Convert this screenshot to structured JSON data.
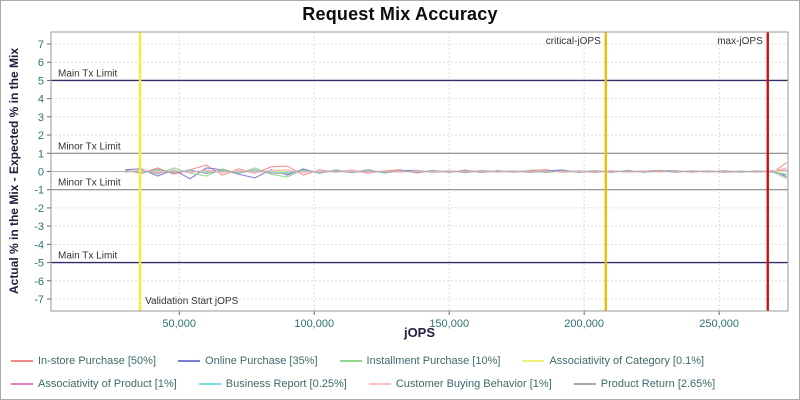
{
  "chart_data": {
    "type": "line",
    "title": "Request Mix Accuracy",
    "xlabel": "jOPS",
    "ylabel": "Actual % in the Mix - Expected % in the Mix",
    "xlim": [
      2500,
      275500
    ],
    "ylim": [
      -7.66,
      7.66
    ],
    "x_ticks": [
      50000,
      100000,
      150000,
      200000,
      250000
    ],
    "y_ticks": [
      7,
      6,
      5,
      4,
      3,
      2,
      1,
      0,
      -1,
      -2,
      -3,
      -4,
      -5,
      -6,
      -7
    ],
    "grid": true,
    "legend_position": "bottom",
    "reference_lines": {
      "horizontal": [
        {
          "label": "Main Tx Limit",
          "y": 5,
          "color": "#2d2d66",
          "width": 1.4
        },
        {
          "label": "Minor Tx Limit",
          "y": 1,
          "color": "#8a8a8a",
          "width": 1.2
        },
        {
          "label": "",
          "y": 0,
          "color": "#b4b4b4",
          "width": 1.0
        },
        {
          "label": "Minor Tx Limit",
          "y": -1,
          "color": "#8a8a8a",
          "width": 1.2
        },
        {
          "label": "Main Tx Limit",
          "y": -5,
          "color": "#2d2d66",
          "width": 1.4
        }
      ],
      "vertical": [
        {
          "label": "Validation Start jOPS",
          "x": 35500,
          "color": "#f5ee31",
          "width": 2.4,
          "label_pos": "bottom-right"
        },
        {
          "label": "critical-jOPS",
          "x": 208000,
          "color": "#e8c000",
          "width": 2.4,
          "label_pos": "top-left"
        },
        {
          "label": "max-jOPS",
          "x": 268000,
          "color": "#cc1111",
          "width": 2.4,
          "label_pos": "top-left"
        }
      ]
    },
    "x": [
      30000,
      36000,
      42000,
      48000,
      54000,
      60000,
      66000,
      72000,
      78000,
      84000,
      90000,
      96000,
      102000,
      108000,
      114000,
      120000,
      126000,
      132000,
      138000,
      144000,
      150000,
      156000,
      162000,
      168000,
      174000,
      180000,
      186000,
      192000,
      198000,
      204000,
      210000,
      216000,
      222000,
      228000,
      234000,
      240000,
      246000,
      252000,
      258000,
      264000,
      270000,
      275000
    ],
    "series": [
      {
        "name": "In-store Purchase [50%]",
        "color": "#f08a8a",
        "values": [
          0.05,
          -0.1,
          0.2,
          -0.15,
          0.1,
          0.35,
          -0.2,
          0.15,
          -0.1,
          0.25,
          0.3,
          -0.2,
          0.1,
          -0.05,
          0.08,
          -0.1,
          0.05,
          0.1,
          -0.08,
          0.06,
          -0.05,
          0.08,
          -0.06,
          0.05,
          -0.04,
          0.06,
          0.1,
          -0.05,
          0.04,
          -0.06,
          0.05,
          -0.04,
          0.03,
          0.06,
          -0.05,
          0.04,
          -0.03,
          0.05,
          -0.04,
          0.03,
          -0.05,
          0.5
        ]
      },
      {
        "name": "Online Purchase [35%]",
        "color": "#7b7bd0",
        "values": [
          0.1,
          0.15,
          -0.25,
          0.1,
          -0.4,
          0.2,
          0.1,
          -0.15,
          -0.35,
          0.1,
          -0.2,
          0.15,
          -0.1,
          0.08,
          -0.06,
          0.1,
          -0.08,
          0.05,
          0.07,
          -0.06,
          0.05,
          -0.07,
          0.06,
          -0.05,
          0.04,
          -0.06,
          0.05,
          0.08,
          -0.05,
          0.04,
          -0.05,
          0.06,
          -0.04,
          0.03,
          0.05,
          -0.04,
          0.04,
          -0.05,
          0.03,
          -0.04,
          0.05,
          -0.3
        ]
      },
      {
        "name": "Installment Purchase [10%]",
        "color": "#8fd98f",
        "values": [
          -0.05,
          0.1,
          -0.15,
          0.2,
          -0.1,
          -0.25,
          0.15,
          -0.1,
          0.2,
          -0.15,
          -0.3,
          0.1,
          -0.08,
          0.06,
          -0.05,
          0.07,
          -0.06,
          0.04,
          -0.05,
          0.06,
          -0.04,
          0.05,
          -0.05,
          0.04,
          -0.03,
          0.05,
          -0.06,
          0.04,
          -0.04,
          0.05,
          -0.03,
          0.04,
          -0.04,
          0.03,
          -0.04,
          0.04,
          -0.03,
          0.03,
          -0.04,
          0.04,
          -0.03,
          -0.4
        ]
      },
      {
        "name": "Associativity of Category [0.1%]",
        "color": "#efef7f",
        "values": [
          0.02,
          -0.03,
          0.04,
          -0.02,
          0.03,
          -0.04,
          0.02,
          0.03,
          -0.02,
          0.03,
          -0.03,
          0.02,
          -0.02,
          0.03,
          -0.02,
          0.02,
          -0.02,
          0.02,
          -0.02,
          0.02,
          -0.01,
          0.02,
          -0.02,
          0.01,
          -0.02,
          0.02,
          -0.01,
          0.02,
          -0.02,
          0.01,
          -0.01,
          0.02,
          -0.01,
          0.01,
          -0.02,
          0.01,
          -0.01,
          0.01,
          -0.01,
          0.01,
          -0.01,
          0.02
        ]
      },
      {
        "name": "Associativity of Product [1%]",
        "color": "#e080c0",
        "values": [
          -0.04,
          0.06,
          -0.08,
          0.05,
          -0.06,
          0.08,
          -0.05,
          0.06,
          -0.07,
          0.05,
          0.08,
          -0.06,
          0.05,
          -0.04,
          0.05,
          -0.05,
          0.04,
          -0.04,
          0.05,
          -0.04,
          0.03,
          -0.04,
          0.04,
          -0.03,
          0.04,
          -0.04,
          0.03,
          -0.03,
          0.04,
          -0.03,
          0.03,
          -0.03,
          0.03,
          -0.03,
          0.03,
          -0.02,
          0.03,
          -0.03,
          0.02,
          -0.03,
          0.03,
          0.1
        ]
      },
      {
        "name": "Business Report [0.25%]",
        "color": "#7fdede",
        "values": [
          0.03,
          -0.05,
          0.06,
          -0.04,
          0.05,
          -0.06,
          0.04,
          -0.05,
          0.05,
          -0.04,
          -0.06,
          0.05,
          -0.04,
          0.03,
          -0.04,
          0.04,
          -0.03,
          0.03,
          -0.03,
          0.03,
          -0.03,
          0.03,
          -0.02,
          0.03,
          -0.03,
          0.02,
          -0.03,
          0.03,
          -0.02,
          0.02,
          -0.03,
          0.02,
          -0.02,
          0.02,
          -0.02,
          0.02,
          -0.02,
          0.02,
          -0.02,
          0.02,
          -0.02,
          -0.15
        ]
      },
      {
        "name": "Customer Buying Behavior [1%]",
        "color": "#f8c2c2",
        "values": [
          -0.06,
          0.08,
          -0.05,
          0.07,
          -0.08,
          0.06,
          -0.06,
          0.07,
          -0.05,
          0.06,
          0.07,
          -0.05,
          0.04,
          -0.05,
          0.04,
          -0.04,
          0.04,
          -0.03,
          0.04,
          -0.04,
          0.03,
          -0.03,
          0.03,
          -0.04,
          0.03,
          -0.03,
          0.03,
          -0.02,
          0.03,
          -0.03,
          0.02,
          -0.03,
          0.02,
          -0.02,
          0.03,
          -0.02,
          0.02,
          -0.02,
          0.02,
          -0.02,
          0.02,
          0.2
        ]
      },
      {
        "name": "Product Return [2.65%]",
        "color": "#a8a8a8",
        "values": [
          0.08,
          -0.1,
          0.12,
          -0.08,
          0.1,
          -0.12,
          0.08,
          -0.1,
          0.1,
          -0.08,
          -0.12,
          0.08,
          -0.06,
          0.05,
          -0.06,
          0.05,
          -0.05,
          0.04,
          -0.05,
          0.05,
          -0.04,
          0.04,
          -0.04,
          0.04,
          -0.04,
          0.04,
          -0.03,
          0.04,
          -0.04,
          0.03,
          -0.03,
          0.03,
          -0.03,
          0.03,
          -0.03,
          0.03,
          -0.03,
          0.03,
          -0.02,
          0.03,
          -0.03,
          -0.2
        ]
      }
    ],
    "legend_rows": [
      [
        0,
        1,
        2,
        3
      ],
      [
        4,
        5,
        6,
        7
      ]
    ]
  }
}
